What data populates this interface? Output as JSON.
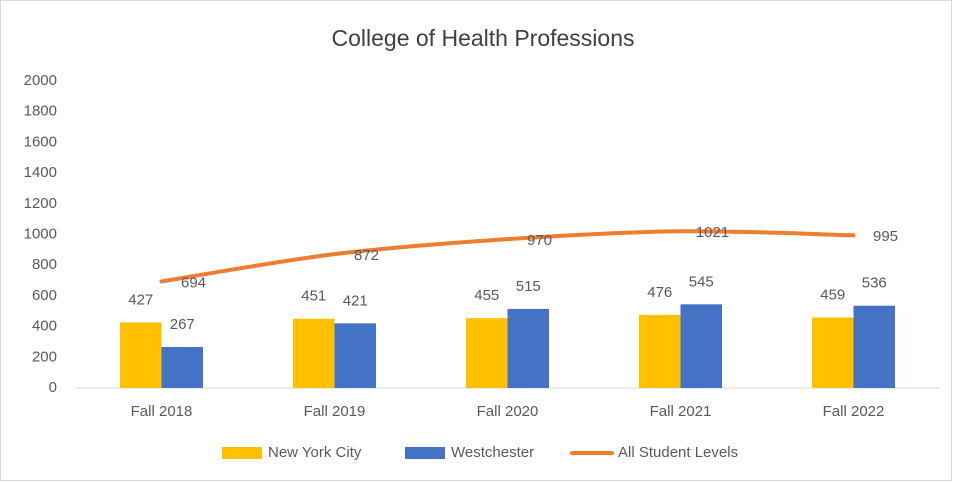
{
  "chart_data": {
    "type": "bar",
    "title": "College of Health Professions",
    "categories": [
      "Fall 2018",
      "Fall 2019",
      "Fall 2020",
      "Fall 2021",
      "Fall 2022"
    ],
    "series": [
      {
        "name": "New York City",
        "color": "#FFC000",
        "values": [
          427,
          451,
          455,
          476,
          459
        ]
      },
      {
        "name": "Westchester",
        "color": "#4472C4",
        "values": [
          267,
          421,
          515,
          545,
          536
        ]
      },
      {
        "name": "All Student Levels",
        "color": "#ED7D31",
        "type": "line",
        "values": [
          694,
          872,
          970,
          1021,
          995
        ]
      }
    ],
    "ylim": [
      0,
      2000
    ],
    "yticks": [
      0,
      200,
      400,
      600,
      800,
      1000,
      1200,
      1400,
      1600,
      1800,
      2000
    ],
    "grid": false,
    "legend": "bottom"
  }
}
